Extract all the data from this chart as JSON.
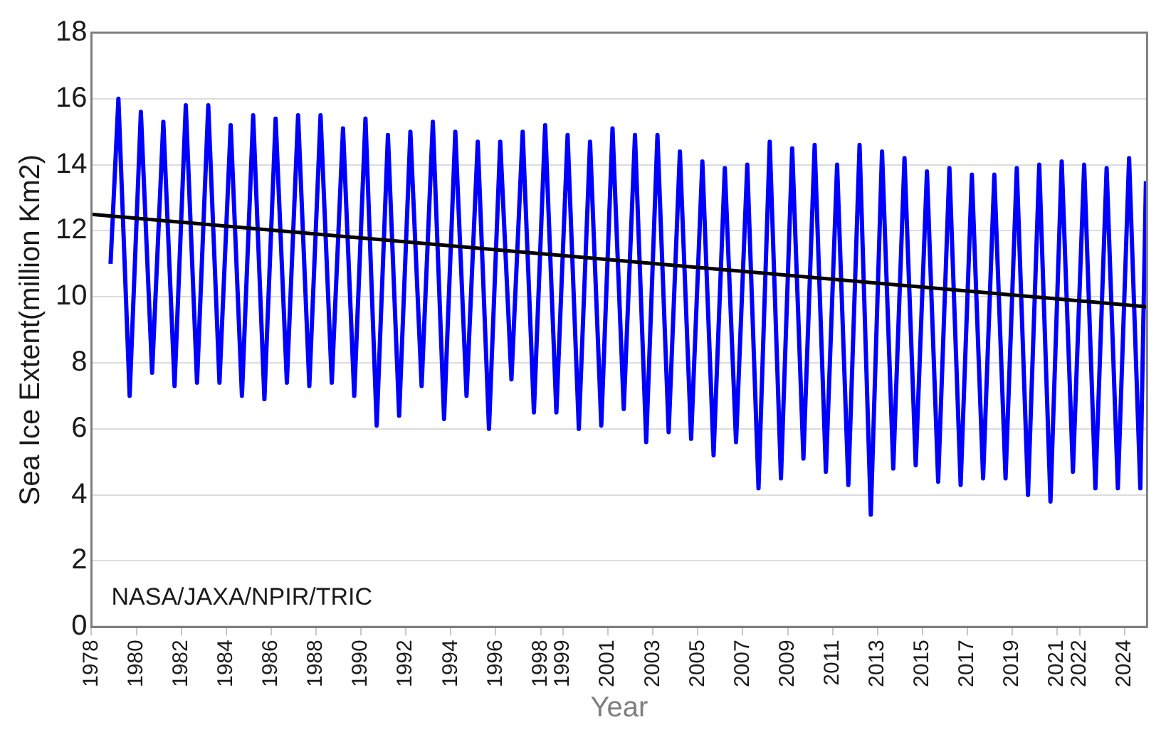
{
  "chart_data": {
    "type": "line",
    "xlabel": "Year",
    "ylabel": "Sea Ice Extent(million Km2)",
    "annotations": [
      "NASA/JAXA/NPIR/TRIC"
    ],
    "xlim": [
      1978,
      2025
    ],
    "xticks": [
      1978,
      1980,
      1982,
      1984,
      1986,
      1988,
      1990,
      1992,
      1994,
      1996,
      1998,
      1999,
      2001,
      2003,
      2005,
      2007,
      2009,
      2011,
      2013,
      2015,
      2017,
      2019,
      2021,
      2022,
      2024
    ],
    "ylim": [
      0,
      18
    ],
    "yticks": [
      0,
      2,
      4,
      6,
      8,
      10,
      12,
      14,
      16,
      18
    ],
    "grid": "y",
    "legend": false,
    "marker": "none",
    "line_style": "solid",
    "series": [
      {
        "color": "#0000ff",
        "x": [
          1978.85,
          1979.2,
          1979.7,
          1980.2,
          1980.7,
          1981.2,
          1981.7,
          1982.2,
          1982.7,
          1983.2,
          1983.7,
          1984.2,
          1984.7,
          1985.2,
          1985.7,
          1986.2,
          1986.7,
          1987.2,
          1987.7,
          1988.2,
          1988.7,
          1989.2,
          1989.7,
          1990.2,
          1990.7,
          1991.2,
          1991.7,
          1992.2,
          1992.7,
          1993.2,
          1993.7,
          1994.2,
          1994.7,
          1995.2,
          1995.7,
          1996.2,
          1996.7,
          1997.2,
          1997.7,
          1998.2,
          1998.7,
          1999.2,
          1999.7,
          2000.2,
          2000.7,
          2001.2,
          2001.7,
          2002.2,
          2002.7,
          2003.2,
          2003.7,
          2004.2,
          2004.7,
          2005.2,
          2005.7,
          2006.2,
          2006.7,
          2007.2,
          2007.7,
          2008.2,
          2008.7,
          2009.2,
          2009.7,
          2010.2,
          2010.7,
          2011.2,
          2011.7,
          2012.2,
          2012.7,
          2013.2,
          2013.7,
          2014.2,
          2014.7,
          2015.2,
          2015.7,
          2016.2,
          2016.7,
          2017.2,
          2017.7,
          2018.2,
          2018.7,
          2019.2,
          2019.7,
          2020.2,
          2020.7,
          2021.2,
          2021.7,
          2022.2,
          2022.7,
          2023.2,
          2023.7,
          2024.2,
          2024.7,
          2024.95
        ],
        "values": [
          11.0,
          16.0,
          7.0,
          15.6,
          7.7,
          15.3,
          7.3,
          15.8,
          7.4,
          15.8,
          7.4,
          15.2,
          7.0,
          15.5,
          6.9,
          15.4,
          7.4,
          15.5,
          7.3,
          15.5,
          7.4,
          15.1,
          7.0,
          15.4,
          6.1,
          14.9,
          6.4,
          15.0,
          7.3,
          15.3,
          6.3,
          15.0,
          7.0,
          14.7,
          6.0,
          14.7,
          7.5,
          15.0,
          6.5,
          15.2,
          6.5,
          14.9,
          6.0,
          14.7,
          6.1,
          15.1,
          6.6,
          14.9,
          5.6,
          14.9,
          5.9,
          14.4,
          5.7,
          14.1,
          5.2,
          13.9,
          5.6,
          14.0,
          4.2,
          14.7,
          4.5,
          14.5,
          5.1,
          14.6,
          4.7,
          14.0,
          4.3,
          14.6,
          3.4,
          14.4,
          4.8,
          14.2,
          4.9,
          13.8,
          4.4,
          13.9,
          4.3,
          13.7,
          4.5,
          13.7,
          4.5,
          13.9,
          4.0,
          14.0,
          3.8,
          14.1,
          4.7,
          14.0,
          4.2,
          13.9,
          4.2,
          14.2,
          4.2,
          13.5
        ]
      },
      {
        "type": "line",
        "color": "#000000",
        "x": [
          1978,
          2025
        ],
        "values": [
          12.5,
          9.7
        ]
      }
    ]
  }
}
